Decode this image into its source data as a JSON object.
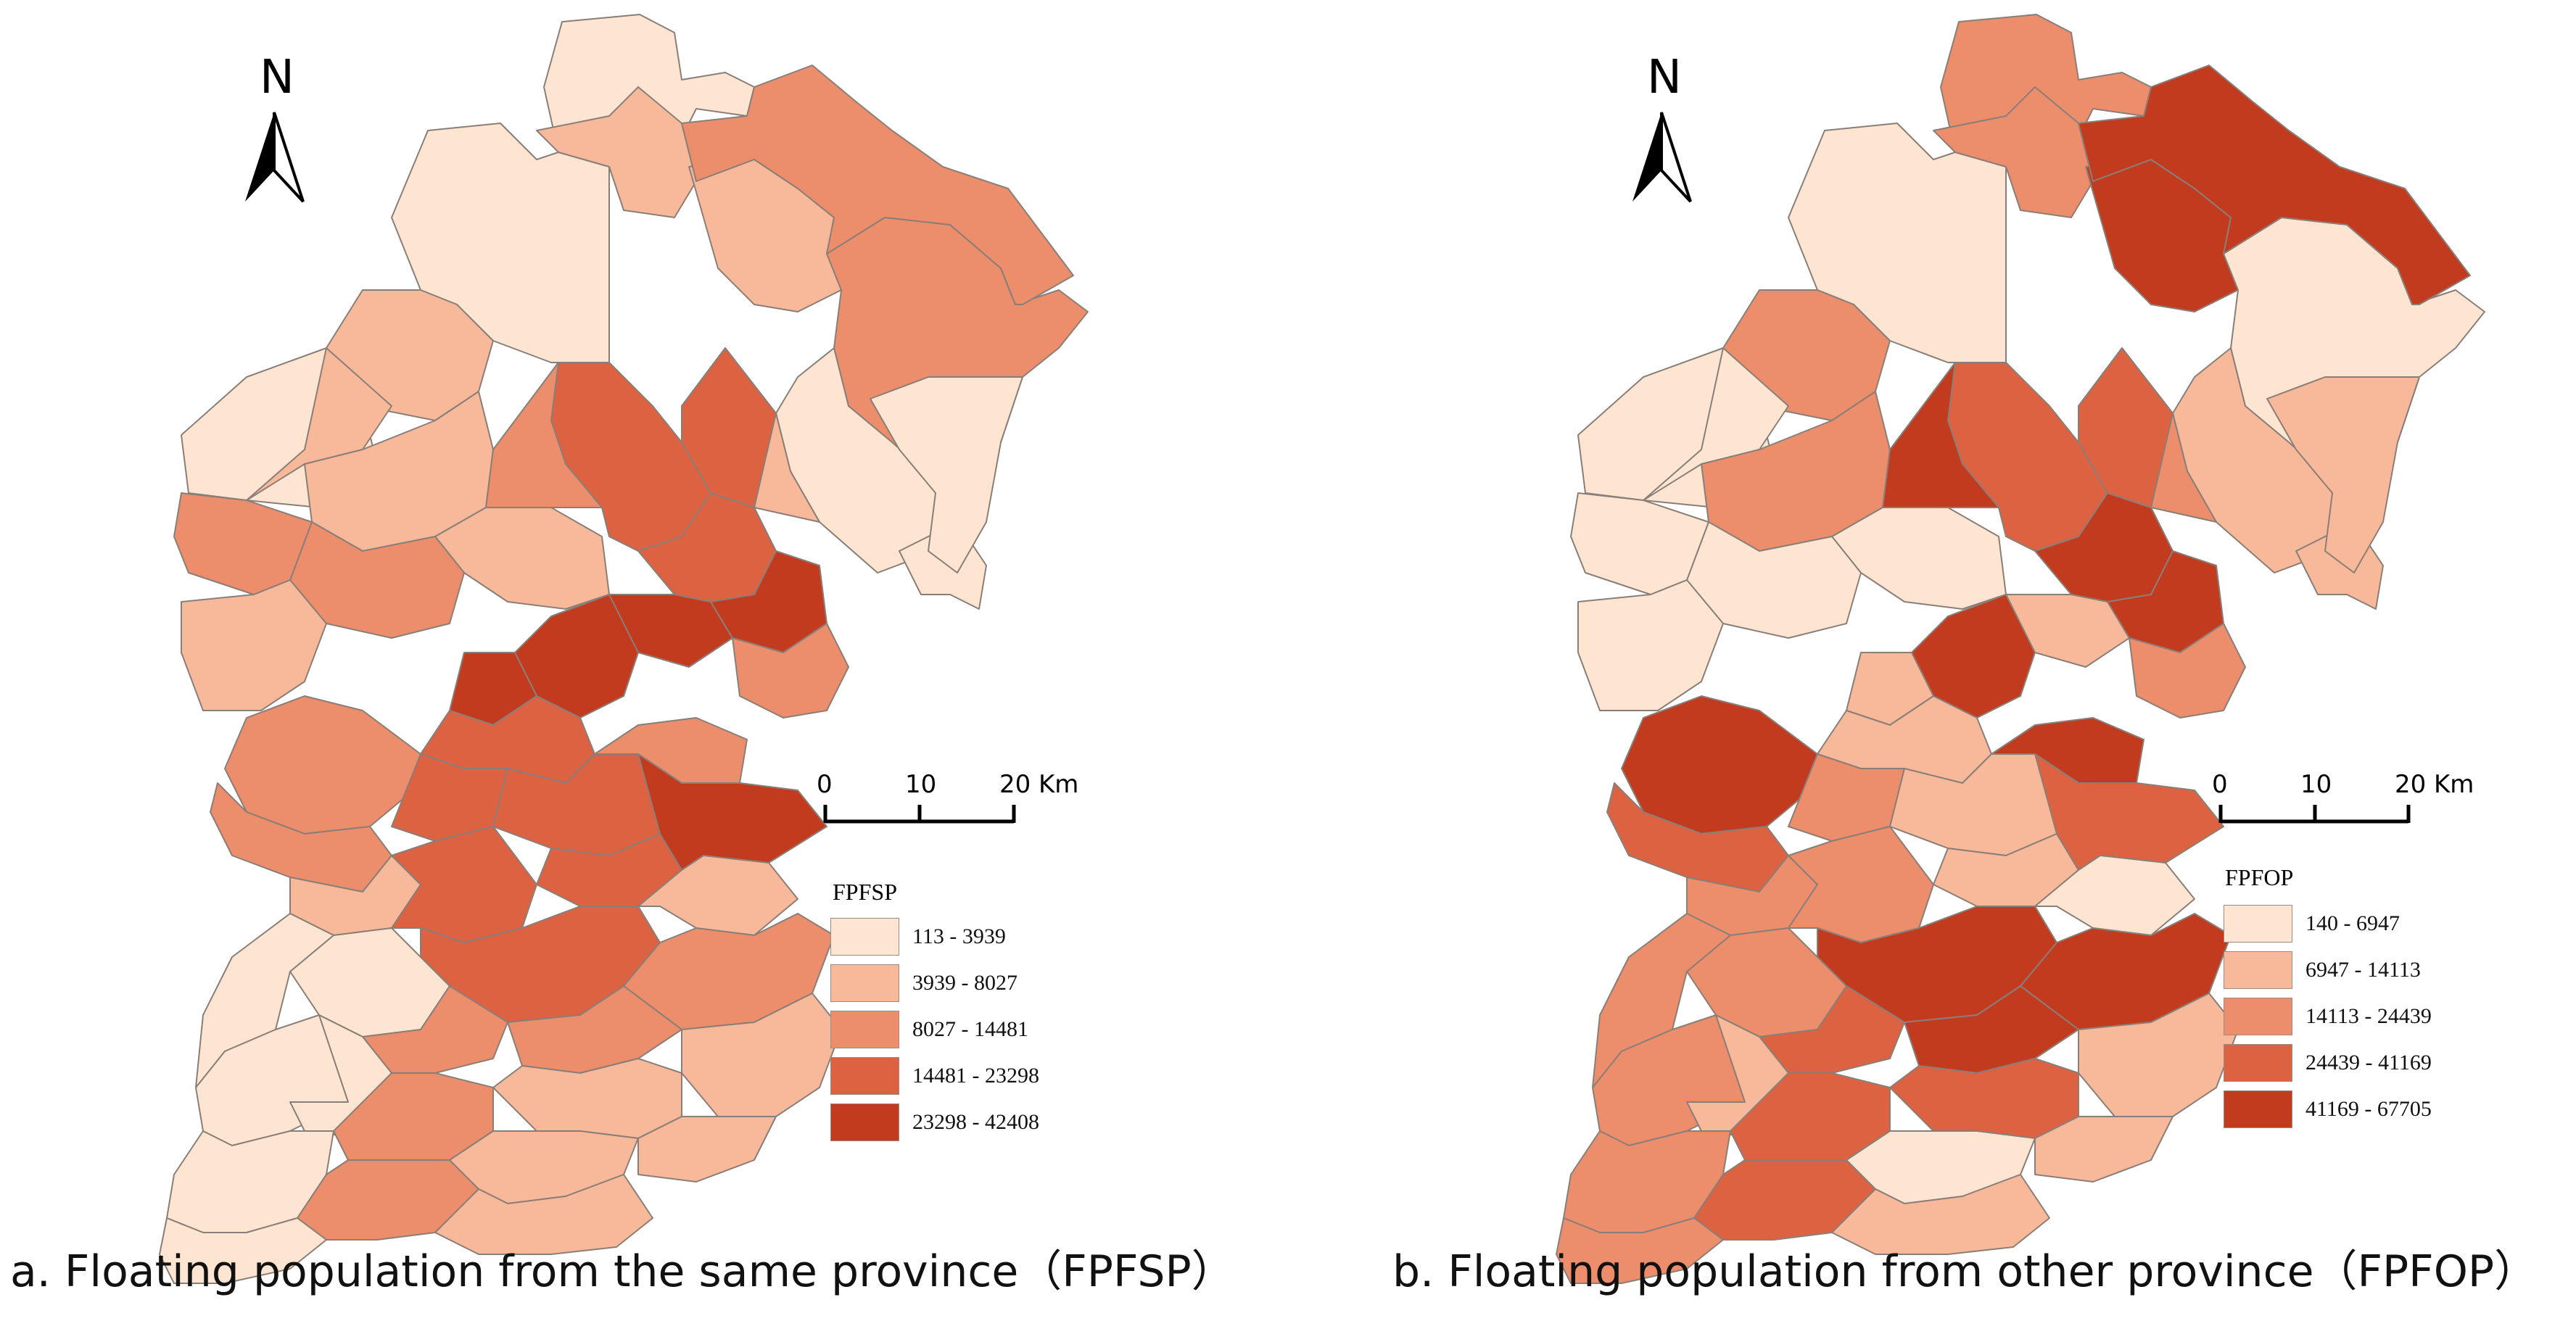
{
  "panels": [
    {
      "id": "a",
      "caption": "a. Floating population from the same province（FPFSP）",
      "north": "N",
      "scale": {
        "ticks": [
          "0",
          "10",
          "20"
        ],
        "unit": "Km"
      },
      "legend": {
        "title": "FPFSP",
        "classes": [
          {
            "label": "113 - 3939",
            "color": "#fde5d2"
          },
          {
            "label": "3939 - 8027",
            "color": "#f8b89a"
          },
          {
            "label": "8027 - 14481",
            "color": "#ec8d6c"
          },
          {
            "label": "14481 - 23298",
            "color": "#dc6242"
          },
          {
            "label": "23298 - 42408",
            "color": "#c33b1e"
          }
        ]
      }
    },
    {
      "id": "b",
      "caption": "b. Floating population from other province（FPFOP）",
      "north": "N",
      "scale": {
        "ticks": [
          "0",
          "10",
          "20"
        ],
        "unit": "Km"
      },
      "legend": {
        "title": "FPFOP",
        "classes": [
          {
            "label": "140 - 6947",
            "color": "#fde5d2"
          },
          {
            "label": "6947 - 14113",
            "color": "#f8b89a"
          },
          {
            "label": "14113 - 24439",
            "color": "#ec8d6c"
          },
          {
            "label": "24439 - 41169",
            "color": "#dc6242"
          },
          {
            "label": "41169 - 67705",
            "color": "#c33b1e"
          }
        ]
      }
    }
  ],
  "palette": {
    "border": "#8a7f78",
    "line": "#000000"
  }
}
